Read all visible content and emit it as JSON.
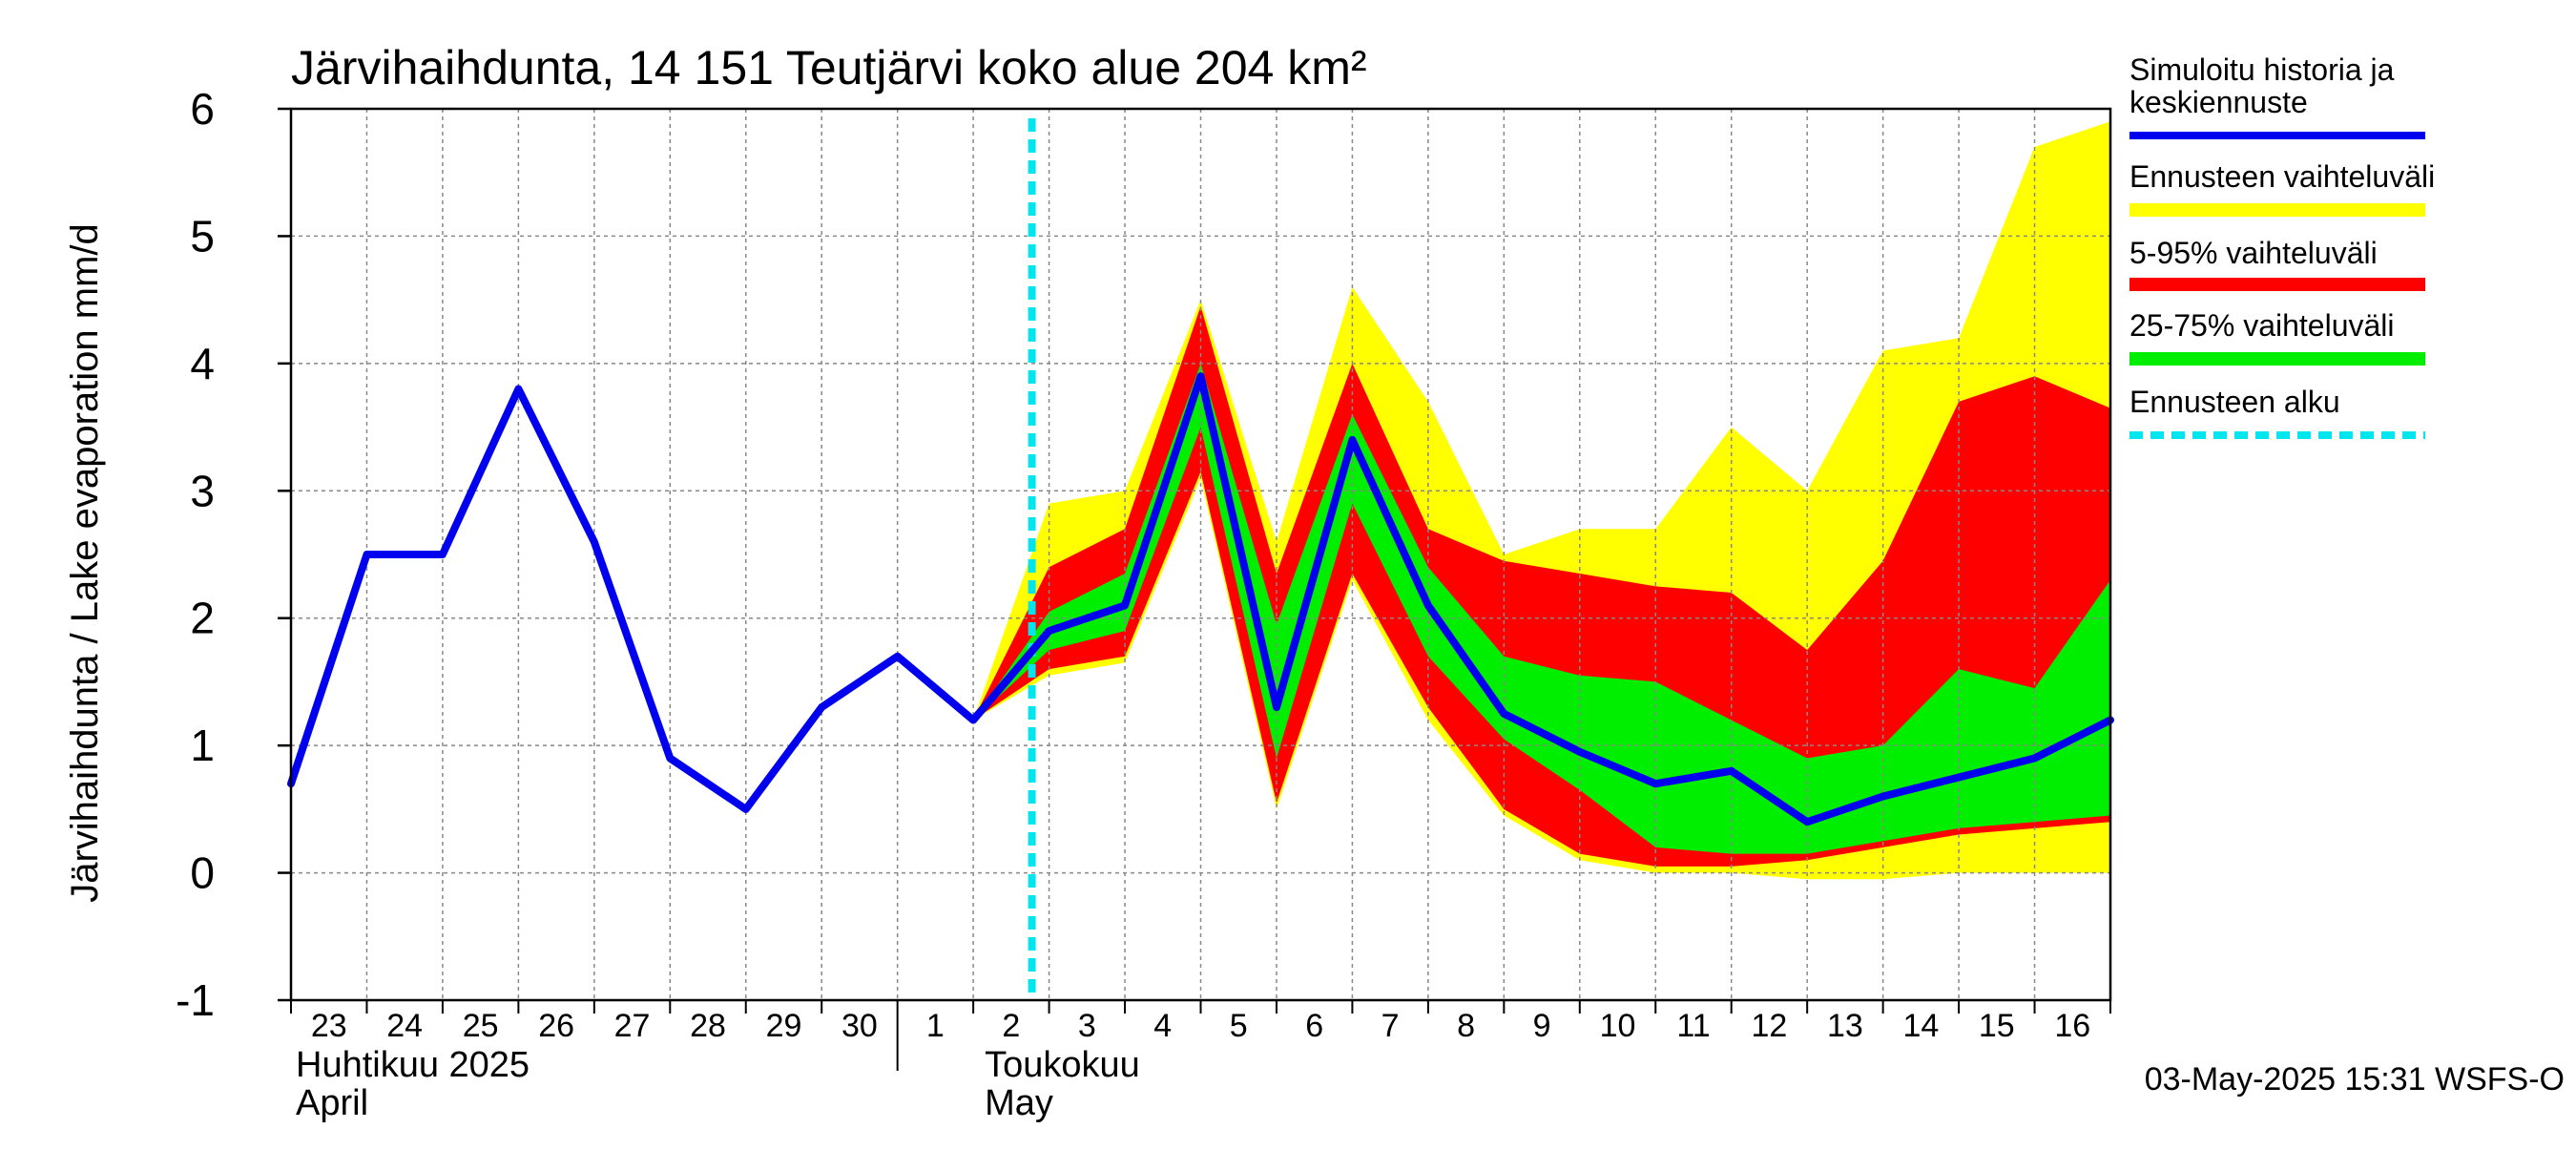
{
  "chart_data": {
    "type": "area",
    "title": "Järvihaihdunta, 14 151 Teutjärvi koko alue 204 km²",
    "ylabel": "Järvihaihdunta / Lake evaporation   mm/d",
    "ylim": [
      -1,
      6
    ],
    "yticks": [
      -1,
      0,
      1,
      2,
      3,
      4,
      5,
      6
    ],
    "grid": true,
    "legend_position": "right",
    "x_day_labels": [
      "23",
      "24",
      "25",
      "26",
      "27",
      "28",
      "29",
      "30",
      "1",
      "2",
      "3",
      "4",
      "5",
      "6",
      "7",
      "8",
      "9",
      "10",
      "11",
      "12",
      "13",
      "14",
      "15",
      "16"
    ],
    "month_labels": [
      {
        "fi": "Huhtikuu  2025",
        "en": "April"
      },
      {
        "fi": "Toukokuu",
        "en": "May"
      }
    ],
    "timestamp": "03-May-2025 15:31 WSFS-O",
    "forecast_start_day_index": 10,
    "history": {
      "name": "Simuloitu historia ja keskiennuste",
      "x": [
        0,
        1,
        2,
        3,
        4,
        5,
        6,
        7,
        8,
        9,
        10,
        11,
        12,
        13,
        14,
        15,
        16,
        17,
        18,
        19,
        20,
        21,
        22,
        23,
        24
      ],
      "values": [
        0.7,
        2.5,
        2.5,
        3.8,
        2.6,
        0.9,
        0.5,
        1.3,
        1.7,
        1.2,
        1.9,
        2.1,
        3.9,
        1.3,
        3.4,
        2.1,
        1.25,
        0.95,
        0.7,
        0.8,
        0.4,
        0.6,
        0.75,
        0.9,
        1.2
      ]
    },
    "bands": {
      "x": [
        9,
        10,
        11,
        12,
        13,
        14,
        15,
        16,
        17,
        18,
        19,
        20,
        21,
        22,
        23,
        24
      ],
      "range": {
        "name": "Ennusteen vaihteluväli",
        "upper": [
          1.2,
          2.9,
          3.0,
          4.5,
          2.6,
          4.6,
          3.7,
          2.5,
          2.7,
          2.7,
          3.5,
          3.0,
          4.1,
          4.2,
          5.7,
          5.9
        ],
        "lower": [
          1.2,
          1.55,
          1.65,
          3.1,
          0.5,
          2.3,
          1.2,
          0.45,
          0.1,
          0.0,
          0.0,
          -0.05,
          -0.05,
          0.0,
          0.0,
          0.0
        ]
      },
      "p5_95": {
        "name": "5-95% vaihteluväli",
        "upper": [
          1.2,
          2.4,
          2.7,
          4.45,
          2.35,
          4.0,
          2.7,
          2.45,
          2.35,
          2.25,
          2.2,
          1.75,
          2.45,
          3.7,
          3.9,
          3.65
        ],
        "lower": [
          1.2,
          1.6,
          1.7,
          3.15,
          0.55,
          2.35,
          1.3,
          0.5,
          0.15,
          0.05,
          0.05,
          0.1,
          0.2,
          0.3,
          0.35,
          0.4
        ]
      },
      "p25_75": {
        "name": "25-75% vaihteluväli",
        "upper": [
          1.2,
          2.05,
          2.35,
          4.0,
          1.95,
          3.6,
          2.4,
          1.7,
          1.55,
          1.5,
          1.2,
          0.9,
          1.0,
          1.6,
          1.45,
          2.3
        ],
        "lower": [
          1.2,
          1.75,
          1.9,
          3.5,
          0.9,
          2.9,
          1.7,
          1.05,
          0.65,
          0.2,
          0.15,
          0.15,
          0.25,
          0.35,
          0.4,
          0.45
        ]
      }
    },
    "legend": [
      {
        "label": "Simuloitu historia ja keskiennuste",
        "color": "#0000ee",
        "style": "solid"
      },
      {
        "label": "Ennusteen vaihteluväli",
        "color": "#ffff00",
        "style": "solid"
      },
      {
        "label": "5-95% vaihteluväli",
        "color": "#ff0000",
        "style": "solid"
      },
      {
        "label": "25-75% vaihteluväli",
        "color": "#00ee00",
        "style": "solid"
      },
      {
        "label": "Ennusteen alku",
        "color": "#00e5ee",
        "style": "dashed"
      }
    ],
    "colors": {
      "history": "#0000ee",
      "range": "#ffff00",
      "p5_95": "#ff0000",
      "p25_75": "#00ee00",
      "forecast_start": "#00e5ee",
      "grid": "#888888"
    }
  }
}
